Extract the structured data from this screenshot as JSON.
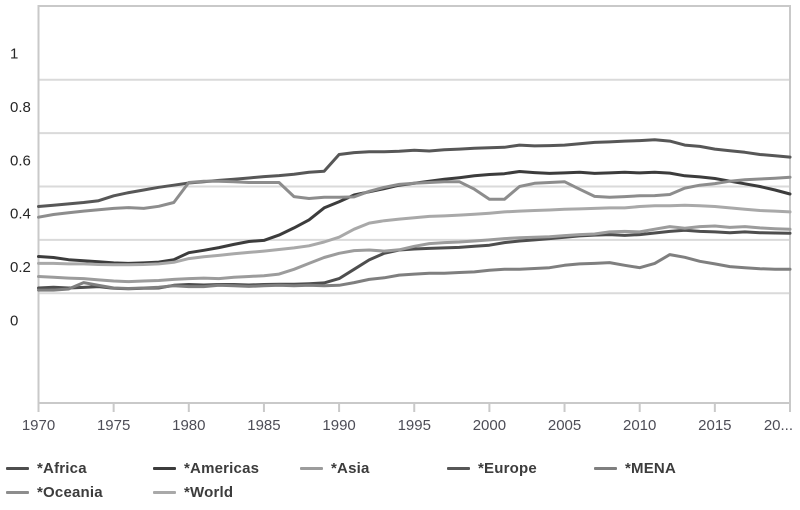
{
  "page": {
    "title": "",
    "background": "#ffffff"
  },
  "chart_data": {
    "type": "line",
    "title": "",
    "xlabel": "",
    "ylabel": "",
    "x_range": [
      1970,
      2020
    ],
    "x_step": 1,
    "ylim": [
      0,
      1
    ],
    "grid": true,
    "gridline_values": [
      0.1,
      0.3,
      0.5,
      0.7,
      0.9
    ],
    "legend_position": "bottom",
    "y_ticks": [
      {
        "value": 1,
        "label": "1"
      },
      {
        "value": 0.8,
        "label": "0.8"
      },
      {
        "value": 0.6,
        "label": "0.6"
      },
      {
        "value": 0.4,
        "label": "0.4"
      },
      {
        "value": 0.2,
        "label": "0.2"
      },
      {
        "value": 0,
        "label": "0"
      }
    ],
    "x_ticks": [
      {
        "value": 1970,
        "label": "1970"
      },
      {
        "value": 1975,
        "label": "1975"
      },
      {
        "value": 1980,
        "label": "1980"
      },
      {
        "value": 1985,
        "label": "1985"
      },
      {
        "value": 1990,
        "label": "1990"
      },
      {
        "value": 1995,
        "label": "1995"
      },
      {
        "value": 2000,
        "label": "2000"
      },
      {
        "value": 2005,
        "label": "2005"
      },
      {
        "value": 2010,
        "label": "2010"
      },
      {
        "value": 2015,
        "label": "2015"
      },
      {
        "value": 2020,
        "label": "20..."
      }
    ],
    "series": [
      {
        "name": "*Africa",
        "color": "#4e4e4e",
        "values": [
          0.12,
          0.123,
          0.12,
          0.122,
          0.125,
          0.119,
          0.117,
          0.119,
          0.12,
          0.13,
          0.133,
          0.131,
          0.133,
          0.133,
          0.131,
          0.133,
          0.134,
          0.134,
          0.136,
          0.139,
          0.155,
          0.19,
          0.225,
          0.25,
          0.262,
          0.266,
          0.268,
          0.27,
          0.272,
          0.276,
          0.28,
          0.29,
          0.296,
          0.3,
          0.305,
          0.31,
          0.315,
          0.318,
          0.32,
          0.317,
          0.32,
          0.326,
          0.332,
          0.336,
          0.332,
          0.33,
          0.327,
          0.33,
          0.327,
          0.326,
          0.325
        ]
      },
      {
        "name": "*Americas",
        "color": "#3c3c3c",
        "values": [
          0.238,
          0.234,
          0.226,
          0.222,
          0.218,
          0.214,
          0.212,
          0.214,
          0.217,
          0.226,
          0.252,
          0.261,
          0.271,
          0.283,
          0.294,
          0.298,
          0.318,
          0.345,
          0.375,
          0.42,
          0.443,
          0.468,
          0.48,
          0.492,
          0.505,
          0.512,
          0.52,
          0.527,
          0.533,
          0.54,
          0.545,
          0.548,
          0.556,
          0.552,
          0.549,
          0.551,
          0.553,
          0.549,
          0.551,
          0.553,
          0.551,
          0.553,
          0.55,
          0.54,
          0.536,
          0.53,
          0.52,
          0.51,
          0.5,
          0.487,
          0.472
        ]
      },
      {
        "name": "*Asia",
        "color": "#9c9c9c",
        "values": [
          0.163,
          0.16,
          0.157,
          0.155,
          0.15,
          0.146,
          0.144,
          0.146,
          0.148,
          0.152,
          0.155,
          0.157,
          0.155,
          0.16,
          0.163,
          0.166,
          0.172,
          0.19,
          0.212,
          0.234,
          0.25,
          0.26,
          0.262,
          0.258,
          0.263,
          0.276,
          0.286,
          0.29,
          0.292,
          0.296,
          0.3,
          0.305,
          0.308,
          0.31,
          0.312,
          0.316,
          0.32,
          0.322,
          0.33,
          0.332,
          0.33,
          0.34,
          0.35,
          0.344,
          0.35,
          0.352,
          0.347,
          0.35,
          0.345,
          0.342,
          0.34
        ]
      },
      {
        "name": "*Europe",
        "color": "#575757",
        "values": [
          0.425,
          0.43,
          0.435,
          0.44,
          0.447,
          0.465,
          0.477,
          0.487,
          0.497,
          0.505,
          0.513,
          0.518,
          0.523,
          0.527,
          0.532,
          0.537,
          0.541,
          0.546,
          0.553,
          0.557,
          0.62,
          0.627,
          0.63,
          0.63,
          0.632,
          0.636,
          0.633,
          0.638,
          0.64,
          0.643,
          0.645,
          0.647,
          0.655,
          0.652,
          0.653,
          0.655,
          0.66,
          0.665,
          0.667,
          0.67,
          0.672,
          0.675,
          0.67,
          0.655,
          0.65,
          0.64,
          0.634,
          0.628,
          0.62,
          0.615,
          0.61
        ]
      },
      {
        "name": "*MENA",
        "color": "#7f7f7f",
        "values": [
          0.112,
          0.112,
          0.116,
          0.14,
          0.13,
          0.12,
          0.118,
          0.12,
          0.123,
          0.128,
          0.125,
          0.125,
          0.13,
          0.128,
          0.126,
          0.128,
          0.13,
          0.128,
          0.13,
          0.128,
          0.13,
          0.14,
          0.152,
          0.158,
          0.168,
          0.172,
          0.175,
          0.175,
          0.178,
          0.18,
          0.186,
          0.19,
          0.19,
          0.193,
          0.196,
          0.205,
          0.21,
          0.212,
          0.215,
          0.205,
          0.196,
          0.212,
          0.245,
          0.235,
          0.22,
          0.21,
          0.2,
          0.196,
          0.192,
          0.19,
          0.19
        ]
      },
      {
        "name": "*Oceania",
        "color": "#8d8d8d",
        "values": [
          0.385,
          0.395,
          0.402,
          0.408,
          0.413,
          0.418,
          0.421,
          0.418,
          0.426,
          0.44,
          0.515,
          0.52,
          0.52,
          0.518,
          0.515,
          0.515,
          0.515,
          0.462,
          0.455,
          0.46,
          0.46,
          0.461,
          0.482,
          0.497,
          0.508,
          0.512,
          0.515,
          0.518,
          0.518,
          0.49,
          0.452,
          0.452,
          0.5,
          0.512,
          0.515,
          0.518,
          0.49,
          0.463,
          0.46,
          0.462,
          0.465,
          0.466,
          0.47,
          0.494,
          0.505,
          0.511,
          0.52,
          0.525,
          0.528,
          0.531,
          0.535
        ]
      },
      {
        "name": "*World",
        "color": "#a9a9a9",
        "values": [
          0.212,
          0.212,
          0.21,
          0.21,
          0.208,
          0.207,
          0.207,
          0.208,
          0.21,
          0.216,
          0.23,
          0.237,
          0.242,
          0.248,
          0.253,
          0.258,
          0.264,
          0.27,
          0.278,
          0.292,
          0.31,
          0.34,
          0.363,
          0.372,
          0.378,
          0.383,
          0.388,
          0.39,
          0.393,
          0.396,
          0.4,
          0.405,
          0.408,
          0.41,
          0.412,
          0.415,
          0.416,
          0.418,
          0.42,
          0.42,
          0.425,
          0.428,
          0.428,
          0.43,
          0.428,
          0.425,
          0.42,
          0.415,
          0.41,
          0.408,
          0.405
        ]
      }
    ],
    "style": {
      "plot_border_color": "#c9c9c9",
      "gridline_color": "#dadada",
      "x_tick_label_color": "#4d4d57",
      "y_tick_label_color": "#262626",
      "legend_text_color": "#3c3c3c",
      "line_width": 3
    }
  }
}
